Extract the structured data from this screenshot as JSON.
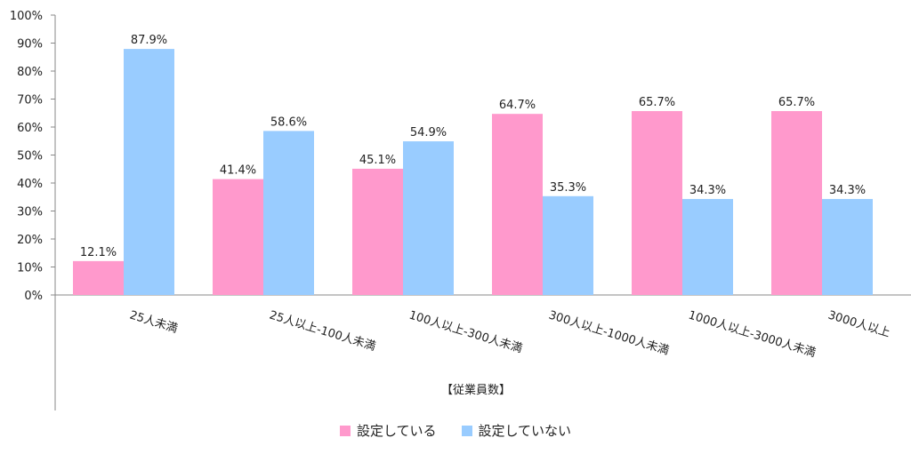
{
  "chart_data": {
    "type": "bar",
    "categories": [
      "25人未満",
      "25人以上-100人未満",
      "100人以上-300人未満",
      "300人以上-1000人未満",
      "1000人以上-3000人未満",
      "3000人以上"
    ],
    "series": [
      {
        "name": "設定している",
        "color": "#ff99cc",
        "values": [
          12.1,
          41.4,
          45.1,
          64.7,
          65.7,
          65.7
        ]
      },
      {
        "name": "設定していない",
        "color": "#99ccff",
        "values": [
          87.9,
          58.6,
          54.9,
          35.3,
          34.3,
          34.3
        ]
      }
    ],
    "data_labels": [
      [
        "12.1%",
        "41.4%",
        "45.1%",
        "64.7%",
        "65.7%",
        "65.7%"
      ],
      [
        "87.9%",
        "58.6%",
        "54.9%",
        "35.3%",
        "34.3%",
        "34.3%"
      ]
    ],
    "xlabel": "【従業員数】",
    "ylabel": "",
    "ylim": [
      0,
      100
    ],
    "yticks": [
      "0%",
      "10%",
      "20%",
      "30%",
      "40%",
      "50%",
      "60%",
      "70%",
      "80%",
      "90%",
      "100%"
    ],
    "grid": false,
    "legend_position": "bottom"
  }
}
